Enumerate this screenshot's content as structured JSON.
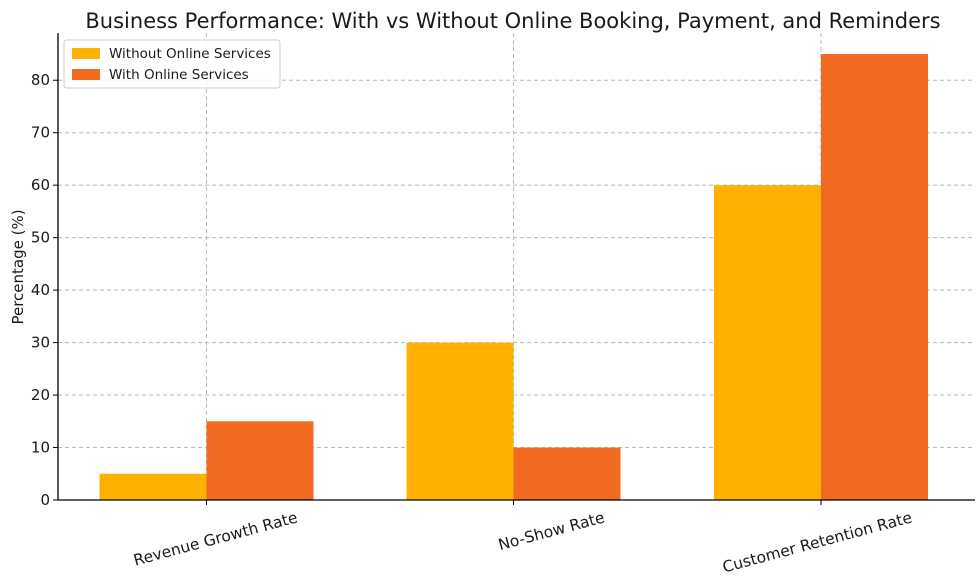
{
  "chart_data": {
    "type": "bar",
    "title": "Business Performance: With vs Without Online Booking, Payment, and Reminders",
    "xlabel": "",
    "ylabel": "Percentage (%)",
    "categories": [
      "Revenue Growth Rate",
      "No-Show Rate",
      "Customer Retention Rate"
    ],
    "series": [
      {
        "name": "Without Online Services",
        "values": [
          5,
          30,
          60
        ],
        "color": "#FFB000"
      },
      {
        "name": "With Online Services",
        "values": [
          15,
          10,
          85
        ],
        "color": "#F26A21"
      }
    ],
    "ylim": [
      0,
      89
    ],
    "yticks": [
      0,
      10,
      20,
      30,
      40,
      50,
      60,
      70,
      80
    ],
    "grid": true,
    "legend_position": "top-left",
    "category_label_rotation_deg": -15
  }
}
